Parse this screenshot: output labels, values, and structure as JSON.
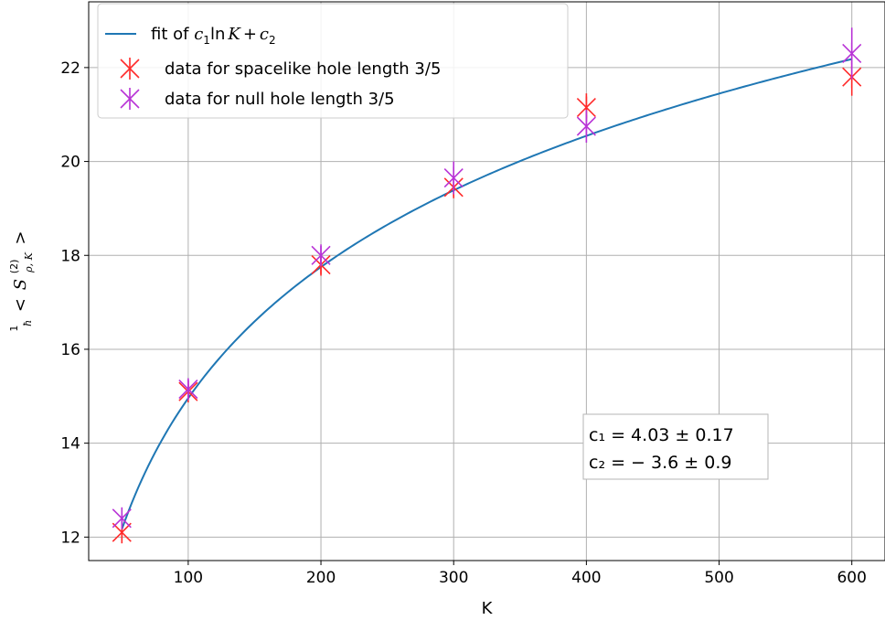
{
  "chart_data": {
    "type": "scatter",
    "xlabel": "K",
    "ylabel": {
      "frac_num": "1",
      "frac_den": "ħ",
      "open": "<",
      "sym": "S",
      "sup": "(2)",
      "sub": "ρ, K",
      "close": ">"
    },
    "xlim": [
      25,
      625
    ],
    "ylim": [
      11.5,
      23.4
    ],
    "x_ticks": [
      100,
      200,
      300,
      400,
      500,
      600
    ],
    "y_ticks": [
      12,
      14,
      16,
      18,
      20,
      22
    ],
    "grid": true,
    "legend_placement": "top-left",
    "fit": {
      "label_prefix": "fit of ",
      "c1": 4.03,
      "c2": -3.6,
      "x_range": [
        50,
        600
      ],
      "color": "#1f77b4"
    },
    "series": [
      {
        "name": "data for spacelike hole length 3/5",
        "color": "#ff2a2a",
        "x": [
          50,
          100,
          200,
          300,
          400,
          600
        ],
        "y": [
          12.1,
          15.1,
          17.8,
          19.45,
          21.15,
          21.8
        ],
        "yerr": [
          0.1,
          0.15,
          0.2,
          0.2,
          0.3,
          0.4
        ]
      },
      {
        "name": "data for null hole length 3/5",
        "color": "#b833d6",
        "x": [
          50,
          100,
          200,
          300,
          400,
          600
        ],
        "y": [
          12.4,
          15.15,
          18.0,
          19.65,
          20.75,
          22.3
        ],
        "yerr": [
          0.1,
          0.2,
          0.2,
          0.35,
          0.35,
          0.55
        ]
      }
    ],
    "annotation": {
      "line1": "c₁ = 4.03 ± 0.17",
      "line2": "c₂ = − 3.6 ± 0.9"
    }
  }
}
